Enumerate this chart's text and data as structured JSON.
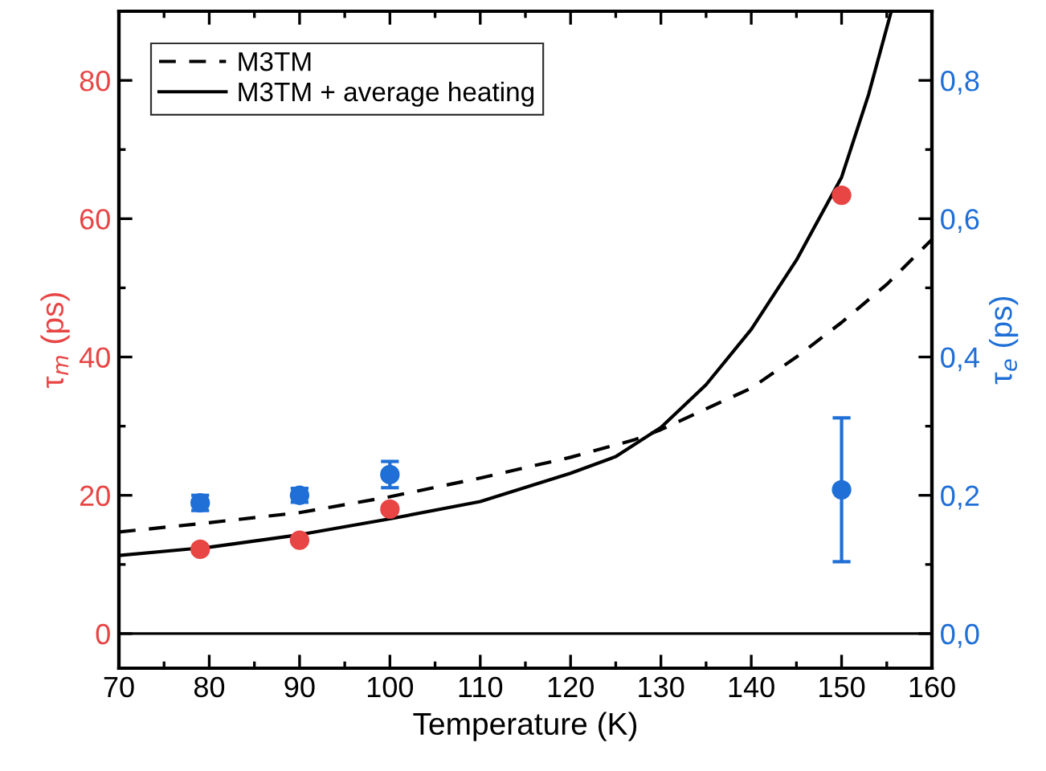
{
  "chart_data": {
    "type": "scatter",
    "xlabel": "Temperature (K)",
    "ylabel": "τ$_{m}$ (ps)",
    "y2label": "τ$_{e}$ (ps)",
    "xlim": [
      70,
      160
    ],
    "xticks": [
      70,
      80,
      90,
      100,
      110,
      120,
      130,
      140,
      150,
      160
    ],
    "ylim": [
      -5,
      90
    ],
    "yticks": [
      0,
      20,
      40,
      60,
      80
    ],
    "y2lim": [
      -0.05,
      0.9
    ],
    "y2ticks": [
      {
        "value": 0,
        "label": "0,0"
      },
      {
        "value": 0.2,
        "label": "0,2"
      },
      {
        "value": 0.4,
        "label": "0,4"
      },
      {
        "value": 0.6,
        "label": "0,6"
      },
      {
        "value": 0.8,
        "label": "0,8"
      }
    ],
    "legend": "top left",
    "grid": false,
    "ref_lines": [
      {
        "axis": "y",
        "value": 0,
        "color": "#000000",
        "line_style": "solid"
      }
    ],
    "series": [
      {
        "name": "M3TM",
        "type": "line",
        "color": "#000000",
        "line_style": "dashed",
        "x": [
          70,
          79,
          90,
          100,
          110,
          120,
          127,
          130,
          140,
          145,
          150,
          155,
          160
        ],
        "values": [
          14.7,
          15.9,
          17.5,
          19.8,
          22.5,
          25.5,
          28,
          29.5,
          35.5,
          40,
          45,
          50.5,
          57
        ]
      },
      {
        "name": "M3TM + average heating",
        "type": "line",
        "color": "#000000",
        "line_style": "solid",
        "x": [
          70,
          80,
          90,
          100,
          110,
          120,
          125,
          130,
          135,
          140,
          145,
          150,
          153,
          155.5
        ],
        "values": [
          11.3,
          12.5,
          14.3,
          16.6,
          19.1,
          23.2,
          25.6,
          29.8,
          36,
          44,
          54,
          66,
          78,
          90
        ]
      },
      {
        "marker": "circle",
        "color": "#e84545",
        "x": [
          79,
          90,
          100,
          150
        ],
        "values": [
          12.2,
          13.5,
          18.0,
          63.4
        ]
      },
      {
        "marker": "circle",
        "axis": "y2",
        "color": "#1f6fd6",
        "x": [
          79,
          90,
          100,
          150
        ],
        "values": [
          0.189,
          0.2,
          0.23,
          0.208
        ],
        "errors": [
          0.011,
          0.01,
          0.019,
          0.104
        ]
      }
    ]
  }
}
